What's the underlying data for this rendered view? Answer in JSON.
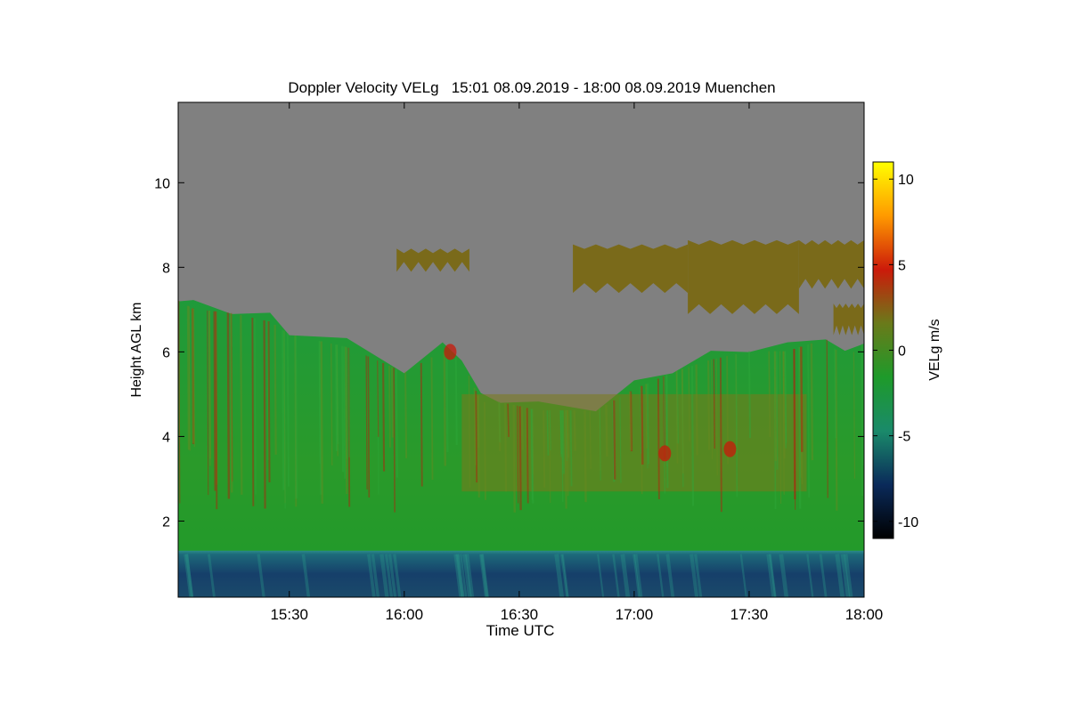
{
  "chart_data": {
    "type": "heatmap",
    "title": "Doppler Velocity VELg   15:01 08.09.2019 - 18:00 08.09.2019 Muenchen",
    "xlabel": "Time UTC",
    "ylabel": "Height AGL km",
    "x_ticks": [
      "15:30",
      "16:00",
      "16:30",
      "17:00",
      "17:30",
      "18:00"
    ],
    "x_tick_minutes": [
      30,
      60,
      90,
      120,
      150,
      180
    ],
    "xlim_minutes": [
      1,
      180
    ],
    "y_ticks": [
      2,
      4,
      6,
      8,
      10
    ],
    "ylim": [
      0.2,
      11.9
    ],
    "colorbar": {
      "label": "VELg m/s",
      "range": [
        -11,
        11
      ],
      "ticks": [
        10,
        5,
        0,
        -5,
        -10
      ],
      "tick_labels": [
        "10",
        "5",
        "0",
        "-5",
        "-10"
      ],
      "colors": [
        "#000000",
        "#0a2a5a",
        "#1a8a6a",
        "#1e9a2a",
        "#6a7a1a",
        "#cc1a0a",
        "#ff9a00",
        "#ffff00"
      ]
    },
    "background_color": "#808080",
    "main_cloud_top_km": {
      "minutes": [
        1,
        5,
        15,
        25,
        30,
        45,
        60,
        70,
        75,
        80,
        85,
        95,
        110,
        120,
        130,
        140,
        150,
        160,
        170,
        175,
        180
      ],
      "heights": [
        7.3,
        7.1,
        7.0,
        6.8,
        6.5,
        6.2,
        5.6,
        6.1,
        5.9,
        4.9,
        4.9,
        4.7,
        4.7,
        5.2,
        5.6,
        5.9,
        6.1,
        6.1,
        6.4,
        5.9,
        6.3
      ]
    },
    "boundary_layer_top_km": 1.3,
    "upper_layers_km": [
      {
        "minutes": [
          58,
          77
        ],
        "bottom": 8.0,
        "top": 8.4
      },
      {
        "minutes": [
          104,
          134
        ],
        "bottom": 7.5,
        "top": 8.5
      },
      {
        "minutes": [
          134,
          163
        ],
        "bottom": 7.0,
        "top": 8.6
      },
      {
        "minutes": [
          163,
          180
        ],
        "bottom": 7.6,
        "top": 8.6
      },
      {
        "minutes": [
          172,
          180
        ],
        "bottom": 6.5,
        "top": 7.1
      }
    ]
  }
}
